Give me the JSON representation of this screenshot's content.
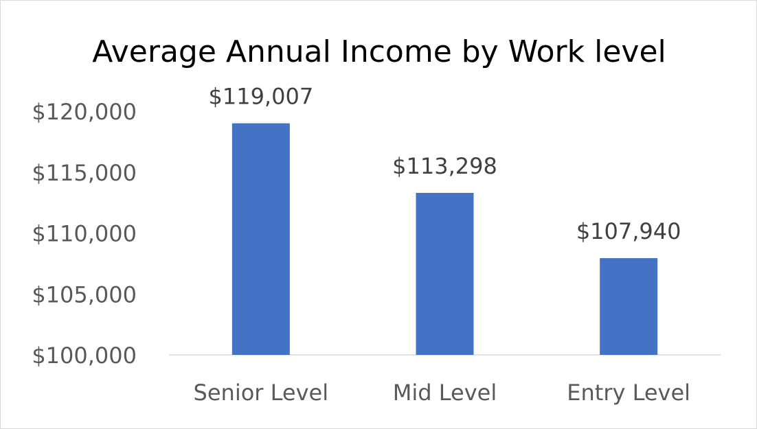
{
  "chart_data": {
    "type": "bar",
    "title": "Average Annual Income by Work level",
    "xlabel": "",
    "ylabel": "",
    "categories": [
      "Senior Level",
      "Mid Level",
      "Entry Level"
    ],
    "values": [
      119007,
      113298,
      107940
    ],
    "data_labels": [
      "$119,007",
      "$113,298",
      "$107,940"
    ],
    "ylim": [
      100000,
      120000
    ],
    "yticks": [
      100000,
      105000,
      110000,
      115000,
      120000
    ],
    "ytick_labels": [
      "$100,000",
      "$105,000",
      "$110,000",
      "$115,000",
      "$120,000"
    ],
    "grid": false,
    "legend": "none",
    "bar_color": "#4472c4",
    "axis_color": "#d9d9d9"
  }
}
